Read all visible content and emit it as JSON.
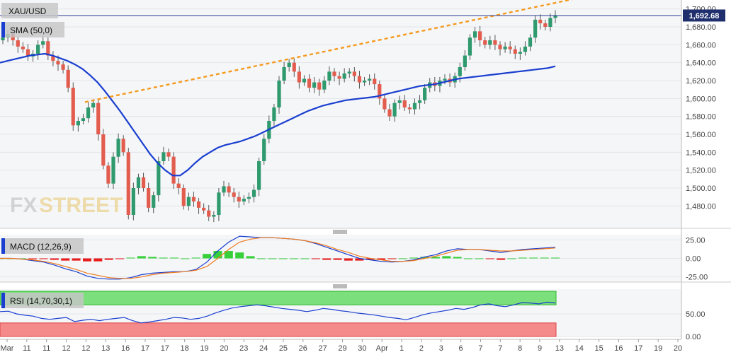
{
  "chart_data": [
    {
      "type": "candlestick",
      "title": "XAU/USD",
      "indicator": "SMA (50,0)",
      "last_price_label": "1,692.68",
      "last_price": 1692.68,
      "ylim": [
        1455,
        1710
      ],
      "yticks": [
        1480,
        1500,
        1520,
        1540,
        1560,
        1580,
        1600,
        1620,
        1640,
        1660,
        1680,
        1700
      ],
      "ytick_labels": [
        "1,480.00",
        "1,500.00",
        "1,520.00",
        "1,540.00",
        "1,560.00",
        "1,580.00",
        "1,600.00",
        "1,620.00",
        "1,640.00",
        "1,660.00",
        "1,680.00",
        "1,700.00"
      ],
      "close": [
        1668,
        1672,
        1665,
        1658,
        1655,
        1647,
        1650,
        1660,
        1664,
        1648,
        1642,
        1638,
        1632,
        1612,
        1570,
        1575,
        1578,
        1590,
        1595,
        1560,
        1525,
        1505,
        1535,
        1555,
        1540,
        1470,
        1500,
        1512,
        1500,
        1478,
        1492,
        1530,
        1540,
        1535,
        1505,
        1500,
        1480,
        1490,
        1485,
        1478,
        1475,
        1468,
        1470,
        1495,
        1502,
        1495,
        1490,
        1485,
        1488,
        1490,
        1498,
        1530,
        1555,
        1575,
        1590,
        1620,
        1635,
        1640,
        1630,
        1618,
        1622,
        1612,
        1618,
        1610,
        1620,
        1630,
        1625,
        1622,
        1628,
        1630,
        1625,
        1618,
        1620,
        1622,
        1616,
        1600,
        1588,
        1580,
        1595,
        1598,
        1590,
        1588,
        1595,
        1598,
        1612,
        1618,
        1614,
        1620,
        1622,
        1618,
        1625,
        1635,
        1648,
        1668,
        1675,
        1665,
        1660,
        1665,
        1660,
        1655,
        1658,
        1655,
        1650,
        1652,
        1658,
        1668,
        1688,
        1684,
        1680,
        1690,
        1692.68
      ],
      "sma50": [
        1640,
        1642,
        1644,
        1646,
        1648,
        1649,
        1650,
        1648,
        1645,
        1642,
        1638,
        1633,
        1626,
        1618,
        1608,
        1597,
        1586,
        1574,
        1562,
        1550,
        1538,
        1528,
        1520,
        1514,
        1514,
        1520,
        1528,
        1535,
        1540,
        1545,
        1548,
        1550,
        1552,
        1555,
        1558,
        1562,
        1566,
        1570,
        1574,
        1578,
        1582,
        1586,
        1589,
        1592,
        1594,
        1596,
        1598,
        1599,
        1600,
        1601,
        1602,
        1604,
        1606,
        1608,
        1610,
        1612,
        1614,
        1615,
        1616,
        1618,
        1620,
        1622,
        1623,
        1624,
        1625,
        1626,
        1627,
        1628,
        1629,
        1630,
        1631,
        1632,
        1633,
        1634,
        1636
      ],
      "trendline": {
        "from": [
          12.5,
          1596
        ],
        "to": [
          14.2,
          1712
        ]
      },
      "x_tick_labels": [
        "Mar",
        "11",
        "11",
        "12",
        "12",
        "13",
        "16",
        "17",
        "17",
        "18",
        "19",
        "20",
        "23",
        "24",
        "25",
        "26",
        "27",
        "29",
        "30",
        "Apr",
        "1",
        "2",
        "3",
        "6",
        "7",
        "7",
        "8",
        "9",
        "13",
        "14",
        "15",
        "16",
        "17",
        "19",
        "20"
      ]
    },
    {
      "type": "macd",
      "label": "MACD (12,26,9)",
      "ylim": [
        -32,
        32
      ],
      "yticks": [
        25,
        0,
        -25
      ],
      "ytick_labels": [
        "25.00",
        "0.00",
        "-25.00"
      ],
      "macd": [
        0,
        0,
        -1,
        -3,
        -5,
        -9,
        -14,
        -18,
        -24,
        -27,
        -28,
        -28,
        -26,
        -22,
        -20,
        -19,
        -18,
        -18,
        -15,
        -5,
        10,
        22,
        30,
        29,
        28,
        28,
        27,
        26,
        24,
        20,
        15,
        10,
        5,
        0,
        -2,
        -4,
        -5,
        -4,
        -2,
        2,
        5,
        10,
        13,
        12,
        12,
        10,
        8,
        10,
        12,
        13,
        14,
        15
      ],
      "signal": [
        0,
        0,
        -1,
        -2,
        -4,
        -7,
        -11,
        -15,
        -20,
        -23,
        -26,
        -27,
        -27,
        -25,
        -22,
        -20,
        -19,
        -18,
        -16,
        -11,
        0,
        12,
        22,
        26,
        28,
        28,
        27,
        26,
        24,
        21,
        17,
        12,
        8,
        3,
        0,
        -2,
        -4,
        -4,
        -3,
        0,
        3,
        7,
        11,
        12,
        12,
        11,
        10,
        10,
        11,
        12,
        13,
        14
      ],
      "hist": [
        0,
        0,
        0,
        -1,
        -1,
        -2,
        -3,
        -3,
        -4,
        -4,
        -2,
        -1,
        1,
        3,
        2,
        1,
        1,
        0,
        1,
        6,
        10,
        10,
        8,
        3,
        0,
        0,
        0,
        0,
        0,
        -1,
        -2,
        -2,
        -3,
        -3,
        -2,
        -2,
        -1,
        0,
        1,
        2,
        2,
        3,
        2,
        0,
        0,
        -1,
        -2,
        0,
        1,
        1,
        1,
        1
      ]
    },
    {
      "type": "rsi",
      "label": "RSI (14,70,30,1)",
      "ylim": [
        0,
        100
      ],
      "yticks": [
        50,
        0
      ],
      "ytick_labels": [
        "50.00",
        "0.00"
      ],
      "overbought": 70,
      "oversold": 30,
      "values": [
        55,
        56,
        50,
        47,
        45,
        40,
        38,
        40,
        42,
        33,
        36,
        38,
        35,
        38,
        40,
        42,
        35,
        30,
        32,
        35,
        38,
        42,
        41,
        38,
        40,
        45,
        52,
        58,
        63,
        66,
        68,
        70,
        68,
        65,
        62,
        60,
        58,
        55,
        58,
        62,
        60,
        57,
        55,
        52,
        50,
        48,
        45,
        42,
        40,
        37,
        42,
        48,
        52,
        55,
        58,
        62,
        60,
        64,
        70,
        72,
        68,
        66,
        70,
        75,
        74,
        72,
        76,
        74
      ]
    }
  ]
}
